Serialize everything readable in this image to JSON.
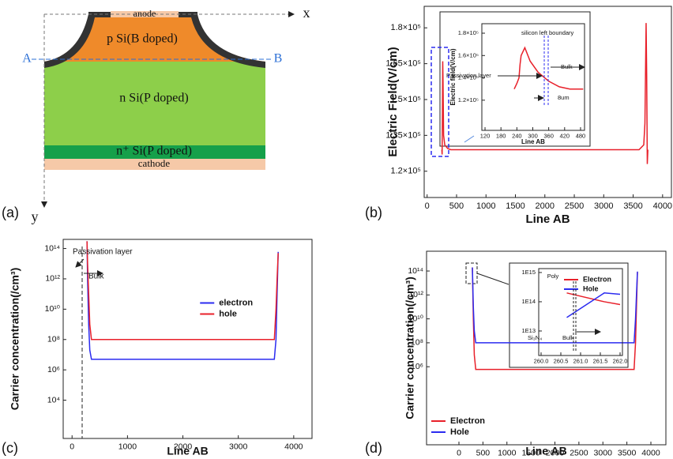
{
  "diagram": {
    "label": "(a)",
    "axes": {
      "x": "x",
      "y": "y"
    },
    "cut": {
      "start": "A",
      "end": "B"
    },
    "layers": {
      "anode": "anode",
      "p": "p Si(B doped)",
      "n": "n Si(P doped)",
      "nplus": "n⁺ Si(P doped)",
      "cathode": "cathode"
    }
  },
  "chart_data": [
    {
      "type": "line",
      "panel_label": "(b)",
      "xlabel": "Line AB",
      "ylabel": "Electric Field(V/cm)",
      "xlim": [
        -50,
        4150
      ],
      "ylim": [
        109000,
        189000
      ],
      "yscale": "linear",
      "xticks": [
        0,
        500,
        1000,
        1500,
        2000,
        2500,
        3000,
        3500,
        4000
      ],
      "yticks": [
        {
          "value": 120000,
          "label": "1.2×10⁵"
        },
        {
          "value": 135000,
          "label": "1.35×10⁵"
        },
        {
          "value": 150000,
          "label": "1.5×10⁵"
        },
        {
          "value": 165000,
          "label": "1.65×10⁵"
        },
        {
          "value": 180000,
          "label": "1.8×10⁵"
        }
      ],
      "x": [
        250,
        255,
        260,
        265,
        270,
        280,
        300,
        350,
        400,
        500,
        3600,
        3680,
        3700,
        3720,
        3730,
        3740,
        3750
      ],
      "series": [
        {
          "color": "#e8202a",
          "values": [
            129000,
            127000,
            145000,
            166000,
            158000,
            135000,
            131000,
            129500,
            129000,
            129000,
            129000,
            131000,
            140000,
            182000,
            160000,
            123000,
            129000
          ]
        }
      ]
    },
    {
      "type": "line",
      "xlabel": "Line AB",
      "ylabel": "Electric field(V/cm)",
      "xlim": [
        108,
        495
      ],
      "ylim": [
        93000,
        188500
      ],
      "yscale": "linear",
      "xticks": [
        120,
        180,
        240,
        300,
        360,
        420,
        480
      ],
      "yticks": [
        {
          "value": 120000,
          "label": "1.2×10⁵"
        },
        {
          "value": 140000,
          "label": "1.4×10⁵"
        },
        {
          "value": 160000,
          "label": "1.6×10⁵"
        },
        {
          "value": 180000,
          "label": "1.8×10⁵"
        }
      ],
      "x": [
        230,
        240,
        248,
        252,
        256,
        262,
        270,
        290,
        320,
        360,
        400,
        440,
        490
      ],
      "series": [
        {
          "color": "#e8202a",
          "values": [
            130000,
            135000,
            140000,
            152000,
            160000,
            163000,
            167000,
            155000,
            145000,
            137000,
            132000,
            130000,
            130000
          ]
        }
      ],
      "annotations": [
        "silicon left boundary",
        "Passivation layer",
        "Bulk",
        "8um"
      ]
    },
    {
      "type": "line",
      "panel_label": "(c)",
      "xlabel": "Line AB",
      "ylabel": "Carrier concentration(/cm³)",
      "xlim": [
        -160,
        4330
      ],
      "ylim": [
        30,
        400000000000000
      ],
      "yscale": "log",
      "legend": "center",
      "xticks": [
        0,
        1000,
        2000,
        3000,
        4000
      ],
      "yticks": [
        {
          "value": 10000,
          "label": "10⁴"
        },
        {
          "value": 1000000,
          "label": "10⁶"
        },
        {
          "value": 100000000,
          "label": "10⁸"
        },
        {
          "value": 10000000000,
          "label": "10¹⁰"
        },
        {
          "value": 1000000000000,
          "label": "10¹²"
        },
        {
          "value": 100000000000000,
          "label": "10¹⁴"
        }
      ],
      "x": [
        270,
        280,
        300,
        320,
        350,
        400,
        3600,
        3650,
        3680,
        3700,
        3720
      ],
      "series": [
        {
          "name": "electron",
          "color": "#2b2bf0",
          "values": [
            300000000000000,
            1000000000000,
            1000000000,
            20000000,
            5000000,
            5000000,
            5000000,
            5000000,
            100000000,
            100000000000,
            60000000000000
          ]
        },
        {
          "name": "hole",
          "color": "#e8202a",
          "values": [
            300000000000000,
            10000000000000,
            100000000000,
            1000000000,
            100000000,
            100000000,
            100000000,
            100000000,
            10000000000,
            1000000000000,
            50000000000000
          ]
        }
      ],
      "annotations": [
        "Passivation layer",
        "Bulk"
      ]
    },
    {
      "type": "line",
      "panel_label": "(d)",
      "xlabel": "Line AB",
      "ylabel": "Carrier concentration(/cm³)",
      "xlim": [
        -675,
        4313
      ],
      "ylim": [
        0.3,
        4500000000000000
      ],
      "yscale": "log",
      "legend": "lower left",
      "xticks": [
        0,
        500,
        1000,
        1500,
        2000,
        2500,
        3000,
        3500,
        4000
      ],
      "yticks": [
        {
          "value": 1000000,
          "label": "10⁶"
        },
        {
          "value": 100000000,
          "label": "10⁸"
        },
        {
          "value": 10000000000,
          "label": "10¹⁰"
        },
        {
          "value": 1000000000000,
          "label": "10¹²"
        },
        {
          "value": 100000000000000,
          "label": "10¹⁴"
        }
      ],
      "x": [
        280,
        300,
        320,
        350,
        400,
        3600,
        3650,
        3680,
        3700,
        3720
      ],
      "series": [
        {
          "name": "Electron",
          "color": "#e8202a",
          "values": [
            200000000000000,
            10000000000,
            10000000,
            600000,
            600000,
            600000,
            600000,
            100000000,
            100000000000,
            80000000000000
          ]
        },
        {
          "name": "Hole",
          "color": "#2b2bf0",
          "values": [
            200000000000000,
            100000000000,
            1000000000,
            100000000,
            100000000,
            100000000,
            100000000,
            10000000000,
            1000000000000,
            90000000000000
          ]
        }
      ]
    },
    {
      "type": "line",
      "xlim": [
        259.94,
        262.06
      ],
      "ylim": [
        1450000000000,
        1360000000000000
      ],
      "yscale": "log",
      "legend": "upper right",
      "xticks": [
        {
          "value": 260,
          "label": "260.0"
        },
        260.5,
        {
          "value": 261,
          "label": "261.0"
        },
        261.5,
        {
          "value": 262,
          "label": "262.0"
        }
      ],
      "yticks": [
        {
          "value": 10000000000000,
          "label": "1E13"
        },
        {
          "value": 100000000000000,
          "label": "1E14"
        },
        {
          "value": 1000000000000000,
          "label": "1E15"
        }
      ],
      "x": [
        260.65,
        261.6,
        262.0
      ],
      "series": [
        {
          "name": "Electron",
          "color": "#e8202a",
          "values": [
            200000000000000,
            100000000000000,
            80000000000000
          ]
        },
        {
          "name": "Hole",
          "color": "#2b2bf0",
          "values": [
            29000000000000,
            200000000000000,
            180000000000000
          ]
        }
      ],
      "annotations": [
        "Poly",
        "Si₃N₄",
        "Bulk"
      ]
    }
  ]
}
